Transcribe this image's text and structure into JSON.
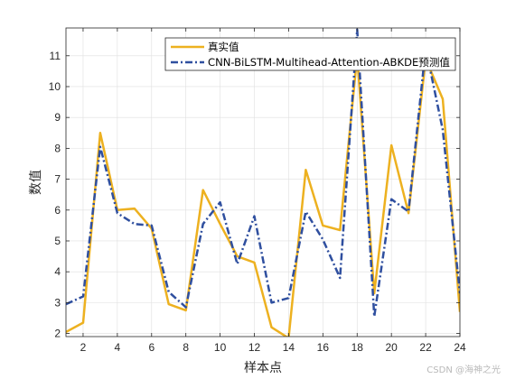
{
  "chart_data": {
    "type": "line",
    "xlabel": "样本点",
    "ylabel": "数值",
    "xlim": [
      1,
      24
    ],
    "ylim": [
      1.9,
      11.9
    ],
    "xticks": [
      2,
      4,
      6,
      8,
      10,
      12,
      14,
      16,
      18,
      20,
      22,
      24
    ],
    "yticks": [
      2,
      3,
      4,
      5,
      6,
      7,
      8,
      9,
      10,
      11
    ],
    "grid": true,
    "legend_position": "top-right",
    "x": [
      1,
      2,
      3,
      4,
      5,
      6,
      7,
      8,
      9,
      10,
      11,
      12,
      13,
      14,
      15,
      16,
      17,
      18,
      19,
      20,
      21,
      22,
      23,
      24
    ],
    "series": [
      {
        "name": "真实值",
        "color": "#EDB120",
        "style": "solid",
        "values": [
          2.05,
          2.35,
          8.5,
          6.0,
          6.05,
          5.4,
          2.95,
          2.75,
          6.65,
          5.55,
          4.5,
          4.3,
          2.2,
          1.85,
          7.3,
          5.5,
          5.35,
          11.0,
          3.3,
          8.1,
          5.9,
          10.9,
          9.6,
          2.7
        ]
      },
      {
        "name": "CNN-BiLSTM-Multihead-Attention-ABKDE预测值",
        "color": "#2F4F9F",
        "style": "dashdot",
        "values": [
          2.95,
          3.2,
          8.05,
          5.9,
          5.55,
          5.5,
          3.35,
          2.85,
          5.55,
          6.25,
          4.25,
          5.8,
          3.0,
          3.15,
          5.95,
          5.05,
          3.8,
          11.85,
          2.55,
          6.35,
          5.95,
          11.25,
          8.6,
          3.3
        ]
      }
    ]
  },
  "watermark": "CSDN @海神之光"
}
